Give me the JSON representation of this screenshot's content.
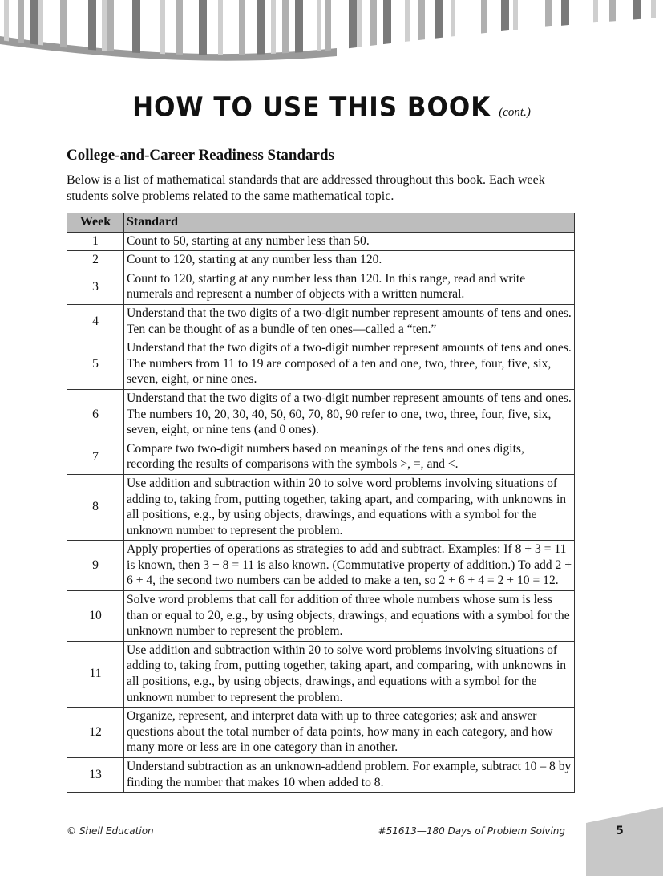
{
  "header": {
    "title": "HOW TO USE THIS BOOK",
    "title_suffix": "(cont.)"
  },
  "section": {
    "heading": "College-and-Career Readiness Standards",
    "intro": "Below is a list of mathematical standards that are addressed throughout this book. Each week students solve problems related to the same mathematical topic."
  },
  "table": {
    "columns": [
      "Week",
      "Standard"
    ],
    "rows": [
      {
        "week": "1",
        "standard": "Count to 50, starting at any number less than 50."
      },
      {
        "week": "2",
        "standard": "Count to 120, starting at any number less than 120."
      },
      {
        "week": "3",
        "standard": "Count to 120, starting at any number less than 120. In this range, read and write numerals and represent a number of objects with a written numeral."
      },
      {
        "week": "4",
        "standard": "Understand that the two digits of a two-digit number represent amounts of tens and ones. Ten can be thought of as a bundle of ten ones—called a “ten.”"
      },
      {
        "week": "5",
        "standard": "Understand that the two digits of a two-digit number represent amounts of tens and ones. The numbers from 11 to 19 are composed of a ten and one, two, three, four, five, six, seven, eight, or nine ones."
      },
      {
        "week": "6",
        "standard": "Understand that the two digits of a two-digit number represent amounts of tens and ones. The numbers 10, 20, 30, 40, 50, 60, 70, 80, 90 refer to one, two, three, four, five, six, seven, eight, or nine tens (and 0 ones)."
      },
      {
        "week": "7",
        "standard": "Compare two two-digit numbers based on meanings of the tens and ones digits, recording the results of comparisons with the symbols >, =, and <."
      },
      {
        "week": "8",
        "standard": "Use addition and subtraction within 20 to solve word problems involving situations of adding to, taking from, putting together, taking apart, and comparing, with unknowns in all positions, e.g., by using objects, drawings, and equations with a symbol for the unknown number to represent the problem."
      },
      {
        "week": "9",
        "standard": "Apply properties of operations as strategies to add and subtract. Examples: If 8 + 3 = 11 is known, then 3 + 8 = 11 is also known. (Commutative property of addition.) To add 2 + 6 + 4, the second two numbers can be added to make a ten, so 2 + 6 + 4 = 2 + 10 = 12."
      },
      {
        "week": "10",
        "standard": "Solve word problems that call for addition of three whole numbers whose sum is less than or equal to 20, e.g., by using objects, drawings, and equations with a symbol for the unknown number to represent the problem."
      },
      {
        "week": "11",
        "standard": "Use addition and subtraction within 20 to solve word problems involving situations of adding to, taking from, putting together, taking apart, and comparing, with unknowns in all positions, e.g., by using objects, drawings, and equations with a symbol for the unknown number to represent the problem."
      },
      {
        "week": "12",
        "standard": "Organize, represent, and interpret data with up to three categories; ask and answer questions about the total number of data points, how many in each category, and how many more or less are in one category than in another."
      },
      {
        "week": "13",
        "standard": "Understand subtraction as an unknown-addend problem. For example, subtract 10 – 8 by finding the number that makes 10 when added to 8."
      }
    ]
  },
  "footer": {
    "left": "© Shell Education",
    "right": "#51613—180 Days of Problem Solving",
    "page_number": "5"
  },
  "colors": {
    "header_fill": "#bdbdbd",
    "tab_fill": "#c8c8c8",
    "stripe_dark": "#7a7a7a",
    "stripe_mid": "#b0b0b0",
    "stripe_light": "#cfcfcf"
  }
}
